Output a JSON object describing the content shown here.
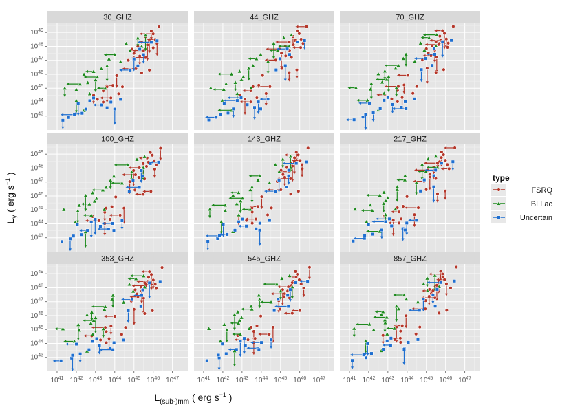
{
  "chart_data": {
    "type": "scatter",
    "layout": "facet-grid-3x3",
    "facets": [
      "30_GHZ",
      "44_GHZ",
      "70_GHZ",
      "100_GHZ",
      "143_GHZ",
      "217_GHZ",
      "353_GHZ",
      "545_GHZ",
      "857_GHZ"
    ],
    "xlabel": {
      "base": "L",
      "sub": "(sub-)mm",
      "unit": "( erg s",
      "sup": "−1",
      "close": ")"
    },
    "ylabel": {
      "base": "L",
      "sub": "γ",
      "unit": "( erg s",
      "sup": "−1",
      "close": ")"
    },
    "xlim": [
      40.5,
      47.8
    ],
    "ylim": [
      42.0,
      49.7
    ],
    "x_ticks": [
      41,
      42,
      43,
      44,
      45,
      46,
      47
    ],
    "y_ticks": [
      43,
      44,
      45,
      46,
      47,
      48,
      49
    ],
    "tick_base": "10",
    "legend": {
      "title": "type",
      "position": "right",
      "entries": [
        {
          "label": "FSRQ",
          "color": "#b5372a",
          "shape": "circle"
        },
        {
          "label": "BLLac",
          "color": "#1e8a1e",
          "shape": "triangle"
        },
        {
          "label": "Uncertain",
          "color": "#1f6fd0",
          "shape": "square"
        }
      ]
    },
    "series": [
      {
        "name": "FSRQ",
        "points": [
          [
            45.9,
            49.1
          ],
          [
            46.3,
            49.4
          ],
          [
            46.0,
            48.9
          ],
          [
            45.6,
            48.7
          ],
          [
            45.8,
            48.4
          ],
          [
            45.4,
            48.3
          ],
          [
            46.1,
            48.5
          ],
          [
            45.2,
            48.0
          ],
          [
            45.7,
            48.1
          ],
          [
            46.0,
            47.9
          ],
          [
            45.5,
            47.7
          ],
          [
            45.0,
            47.5
          ],
          [
            45.3,
            47.3
          ],
          [
            44.7,
            47.0
          ],
          [
            45.6,
            47.2
          ],
          [
            45.4,
            46.1
          ],
          [
            44.1,
            45.9
          ],
          [
            44.4,
            45.1
          ],
          [
            43.9,
            45.2
          ],
          [
            44.2,
            44.6
          ],
          [
            43.6,
            45.1
          ],
          [
            43.4,
            44.8
          ],
          [
            43.8,
            44.3
          ],
          [
            43.1,
            44.2
          ],
          [
            42.9,
            44.5
          ],
          [
            43.4,
            44.0
          ],
          [
            45.1,
            46.4
          ],
          [
            45.8,
            46.3
          ],
          [
            46.2,
            48.2
          ],
          [
            44.9,
            47.8
          ]
        ]
      },
      {
        "name": "BLLac",
        "points": [
          [
            41.4,
            45.0
          ],
          [
            42.0,
            44.9
          ],
          [
            42.2,
            45.3
          ],
          [
            42.6,
            45.4
          ],
          [
            43.0,
            45.6
          ],
          [
            42.4,
            46.0
          ],
          [
            42.9,
            46.2
          ],
          [
            43.3,
            46.4
          ],
          [
            43.6,
            46.6
          ],
          [
            43.7,
            47.1
          ],
          [
            44.0,
            47.4
          ],
          [
            44.6,
            48.2
          ],
          [
            45.2,
            48.6
          ],
          [
            45.4,
            48.0
          ],
          [
            43.1,
            45.8
          ],
          [
            42.7,
            44.6
          ],
          [
            42.0,
            44.1
          ],
          [
            42.4,
            43.4
          ],
          [
            43.5,
            45.0
          ],
          [
            44.3,
            46.9
          ],
          [
            45.6,
            48.8
          ],
          [
            44.8,
            47.7
          ]
        ]
      },
      {
        "name": "Uncertain",
        "points": [
          [
            41.3,
            42.7
          ],
          [
            41.6,
            42.9
          ],
          [
            41.9,
            43.1
          ],
          [
            42.5,
            43.5
          ],
          [
            42.1,
            43.9
          ],
          [
            42.7,
            44.1
          ],
          [
            43.3,
            43.8
          ],
          [
            43.6,
            43.6
          ],
          [
            44.0,
            43.5
          ],
          [
            44.3,
            44.2
          ],
          [
            44.8,
            46.3
          ],
          [
            45.2,
            46.6
          ],
          [
            45.5,
            47.4
          ],
          [
            45.3,
            47.8
          ],
          [
            45.9,
            48.3
          ],
          [
            46.2,
            48.4
          ],
          [
            45.0,
            47.1
          ],
          [
            42.9,
            44.3
          ],
          [
            42.3,
            43.2
          ],
          [
            43.8,
            44.0
          ]
        ]
      }
    ]
  }
}
